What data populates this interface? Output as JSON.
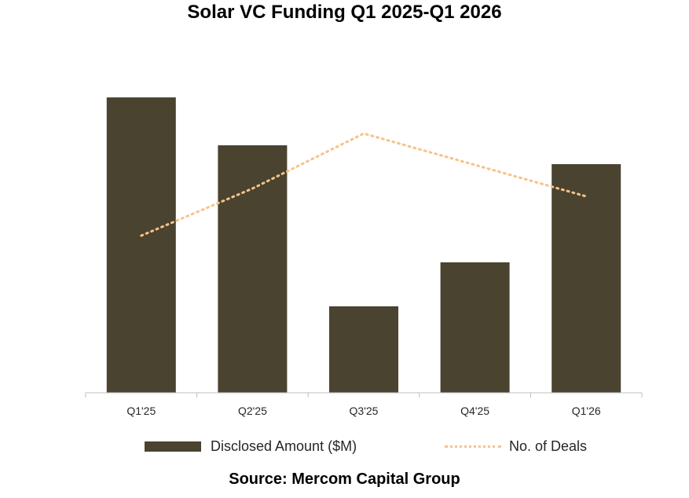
{
  "chart_data": {
    "type": "bar",
    "title": "Solar VC Funding Q1 2025-Q1 2026",
    "categories": [
      "Q1'25",
      "Q2'25",
      "Q3'25",
      "Q4'25",
      "Q1'26"
    ],
    "series": [
      {
        "name": "Disclosed Amount ($M)",
        "type": "bar",
        "values": [
          376,
          315,
          110,
          166,
          291
        ]
      },
      {
        "name": "No. of Deals",
        "type": "line",
        "style": "dotted",
        "values": [
          20,
          26,
          33,
          29,
          25
        ]
      }
    ],
    "bar_ylim": [
      0,
      400
    ],
    "line_ylim": [
      0,
      40
    ],
    "gridlines": false,
    "legend_position": "bottom",
    "colors": {
      "bar": "#4a4330",
      "line": "#f5c48a",
      "axis": "#bfbfbf"
    }
  },
  "source": "Source: Mercom Capital Group"
}
